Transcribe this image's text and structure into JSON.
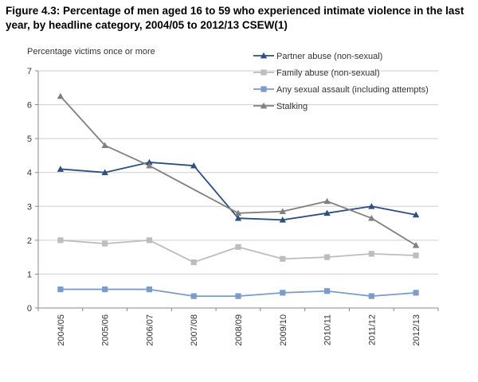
{
  "title": "Figure 4.3: Percentage of men aged 16 to 59 who experienced intimate violence in the last year, by headline category, 2004/05 to 2012/13 CSEW(1)",
  "chart_data": {
    "type": "line",
    "title": "Figure 4.3: Percentage of men aged 16 to 59 who experienced intimate violence in the last year, by headline category, 2004/05 to 2012/13 CSEW(1)",
    "ylabel": "Percentage victims once or more",
    "xlabel": "",
    "ylim": [
      0,
      7
    ],
    "yticks": [
      0,
      1,
      2,
      3,
      4,
      5,
      6,
      7
    ],
    "grid": true,
    "legend_position": "top-right",
    "categories": [
      "2004/05",
      "2005/06",
      "2006/07",
      "2007/08",
      "2008/09",
      "2009/10",
      "2010/11",
      "2011/12",
      "2012/13"
    ],
    "series": [
      {
        "name": "Partner abuse (non-sexual)",
        "color": "#2f4f7f",
        "marker": "triangle",
        "values": [
          4.1,
          4.0,
          4.3,
          4.2,
          2.65,
          2.6,
          2.8,
          3.0,
          2.75
        ]
      },
      {
        "name": "Family abuse (non-sexual)",
        "color": "#bdbdbd",
        "marker": "square",
        "values": [
          2.0,
          1.9,
          2.0,
          1.35,
          1.8,
          1.45,
          1.5,
          1.6,
          1.55
        ]
      },
      {
        "name": "Any sexual assault (including attempts)",
        "color": "#7b9bc8",
        "marker": "square",
        "values": [
          0.55,
          0.55,
          0.55,
          0.35,
          0.35,
          0.45,
          0.5,
          0.35,
          0.45
        ]
      },
      {
        "name": "Stalking",
        "color": "#808080",
        "marker": "triangle",
        "values": [
          6.25,
          4.8,
          4.2,
          null,
          2.8,
          2.85,
          3.15,
          2.65,
          1.85
        ]
      }
    ]
  }
}
